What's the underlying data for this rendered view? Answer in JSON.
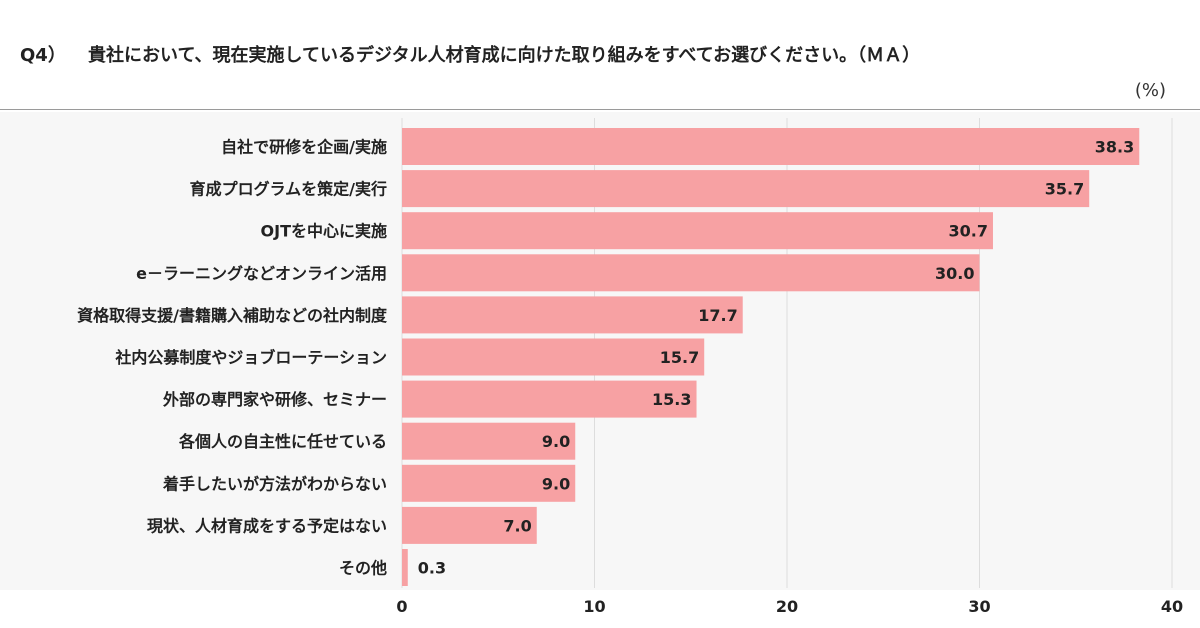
{
  "question": {
    "number": "Q4）",
    "text": "貴社において、現在実施しているデジタル人材育成に向けた取り組みをすべてお選びください。（ＭＡ）"
  },
  "unit_label": "(%)",
  "colors": {
    "bar": "#f7a1a3",
    "bar_edge": "#f28e93",
    "grid": "#dddddd",
    "background": "#f7f7f7"
  },
  "chart_data": {
    "type": "bar",
    "orientation": "horizontal",
    "categories": [
      "自社で研修を企画/実施",
      "育成プログラムを策定/実行",
      "OJTを中心に実施",
      "e－ラーニングなどオンライン活用",
      "資格取得支援/書籍購入補助などの社内制度",
      "社内公募制度やジョブローテーション",
      "外部の専門家や研修、セミナー",
      "各個人の自主性に任せている",
      "着手したいが方法がわからない",
      "現状、人材育成をする予定はない",
      "その他"
    ],
    "values": [
      38.3,
      35.7,
      30.7,
      30.0,
      17.7,
      15.7,
      15.3,
      9.0,
      9.0,
      7.0,
      0.3
    ],
    "value_labels": [
      "38.3",
      "35.7",
      "30.7",
      "30.0",
      "17.7",
      "15.7",
      "15.3",
      "9.0",
      "9.0",
      "7.0",
      "0.3"
    ],
    "xlim": [
      0,
      40
    ],
    "xticks": [
      "0",
      "10",
      "20",
      "30",
      "40"
    ],
    "grid": true,
    "legend": "none"
  }
}
